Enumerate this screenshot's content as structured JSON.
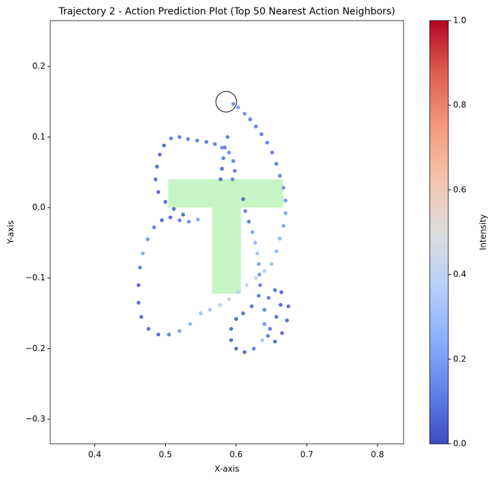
{
  "chart_data": {
    "type": "scatter",
    "title": "Trajectory 2 - Action Prediction Plot (Top 50 Nearest Action Neighbors)",
    "x_label": "X-axis",
    "y_label": "Y-axis",
    "xlim": [
      0.337,
      0.837
    ],
    "ylim": [
      -0.335,
      0.265
    ],
    "xticks": [
      0.4,
      0.5,
      0.6,
      0.7,
      0.8
    ],
    "yticks": [
      {
        "value": 0.2,
        "label": "0.2"
      },
      {
        "value": 0.1,
        "label": "0.1"
      },
      {
        "value": 0,
        "label": "0.0"
      },
      {
        "value": -0.1,
        "label": "−0.1"
      },
      {
        "value": -0.2,
        "label": "−0.2"
      },
      {
        "value": -0.3,
        "label": "−0.3"
      }
    ],
    "colormap": "coolwarm",
    "colorbar": {
      "label": "Intensity",
      "lim": [
        0,
        1
      ],
      "ticks": [
        {
          "value": 0,
          "label": "0.0"
        },
        0.2,
        0.4,
        0.6,
        0.8,
        {
          "value": 1,
          "label": "1.0"
        }
      ]
    },
    "shape": {
      "color": "#c6f5c6",
      "x": [
        0.504,
        0.667,
        0.667,
        0.607,
        0.607,
        0.566,
        0.566,
        0.504
      ],
      "y": [
        0.04,
        0.04,
        0.0,
        0.0,
        -0.122,
        -0.122,
        0.0,
        0.0
      ]
    },
    "marker": {
      "x": 0.586,
      "y": 0.15
    },
    "series": [
      {
        "x": [
          0.596,
          0.603,
          0.612,
          0.62,
          0.628,
          0.636,
          0.644,
          0.651,
          0.657,
          0.662,
          0.667,
          0.67,
          0.67,
          0.667,
          0.662,
          0.657,
          0.65,
          0.64,
          0.628,
          0.615,
          0.603,
          0.59,
          0.577,
          0.563,
          0.55,
          0.535,
          0.52,
          0.505,
          0.49,
          0.476,
          0.466,
          0.462,
          0.462,
          0.464,
          0.468,
          0.475,
          0.484,
          0.495,
          0.507,
          0.52,
          0.533,
          0.546,
          0.525,
          0.512,
          0.5,
          0.49,
          0.486,
          0.488,
          0.492,
          0.498,
          0.508,
          0.52,
          0.532,
          0.545,
          0.558,
          0.57,
          0.58,
          0.59,
          0.596,
          0.598,
          0.595,
          0.588,
          0.584,
          0.582,
          0.58,
          0.578,
          0.61,
          0.613,
          0.618,
          0.623,
          0.627,
          0.63,
          0.632,
          0.633,
          0.634,
          0.632,
          0.622,
          0.61,
          0.6,
          0.593,
          0.593,
          0.6,
          0.612,
          0.625,
          0.637,
          0.648,
          0.657,
          0.663,
          0.664,
          0.655,
          0.646,
          0.64,
          0.64,
          0.645,
          0.655,
          0.665,
          0.672,
          0.674
        ],
        "values": [
          0.147,
          0.142,
          0.133,
          0.125,
          0.115,
          0.104,
          0.092,
          0.078,
          0.062,
          0.045,
          0.028,
          0.01,
          -0.008,
          -0.026,
          -0.044,
          -0.062,
          -0.08,
          -0.09,
          -0.1,
          -0.11,
          -0.12,
          -0.13,
          -0.138,
          -0.145,
          -0.15,
          -0.165,
          -0.175,
          -0.18,
          -0.18,
          -0.172,
          -0.155,
          -0.135,
          -0.11,
          -0.085,
          -0.065,
          -0.045,
          -0.028,
          -0.018,
          -0.014,
          -0.018,
          -0.02,
          -0.017,
          -0.01,
          -0.002,
          0.008,
          0.022,
          0.04,
          0.058,
          0.075,
          0.088,
          0.098,
          0.1,
          0.097,
          0.095,
          0.093,
          0.09,
          0.085,
          0.078,
          0.066,
          0.052,
          0.04,
          0.1,
          0.085,
          0.07,
          0.055,
          0.04,
          0.012,
          -0.005,
          -0.02,
          -0.035,
          -0.05,
          -0.065,
          -0.08,
          -0.095,
          -0.11,
          -0.125,
          -0.14,
          -0.15,
          -0.158,
          -0.172,
          -0.188,
          -0.2,
          -0.205,
          -0.2,
          -0.188,
          -0.172,
          -0.155,
          -0.138,
          -0.12,
          -0.117,
          -0.128,
          -0.145,
          -0.165,
          -0.182,
          -0.19,
          -0.178,
          -0.16,
          -0.14
        ],
        "intensity": [
          0.15,
          0.2,
          0.15,
          0.1,
          0.1,
          0.1,
          0.1,
          0.1,
          0.1,
          0.1,
          0.15,
          0.15,
          0.2,
          0.2,
          0.25,
          0.25,
          0.3,
          0.35,
          0.4,
          0.4,
          0.4,
          0.4,
          0.35,
          0.3,
          0.3,
          0.25,
          0.2,
          0.1,
          0.05,
          0.05,
          0.05,
          0.05,
          0.05,
          0.1,
          0.2,
          0.15,
          0.1,
          0.05,
          0.05,
          0.1,
          0.15,
          0.2,
          0.05,
          0.05,
          0.05,
          0.05,
          0.05,
          0.05,
          0.05,
          0.05,
          0.1,
          0.1,
          0.1,
          0.1,
          0.1,
          0.1,
          0.15,
          0.15,
          0.1,
          0.1,
          0.1,
          0.1,
          0.1,
          0.1,
          0.05,
          0.05,
          0.05,
          0.1,
          0.1,
          0.2,
          0.25,
          0.3,
          0.2,
          0.15,
          0.1,
          0.1,
          0.05,
          0.05,
          0.05,
          0.05,
          0.05,
          0.05,
          0.05,
          0.1,
          0.3,
          0.1,
          0.05,
          0.05,
          0.05,
          0.05,
          0.1,
          0.1,
          0.15,
          0.1,
          0.05,
          0.05,
          0.05,
          0.05
        ]
      }
    ]
  }
}
